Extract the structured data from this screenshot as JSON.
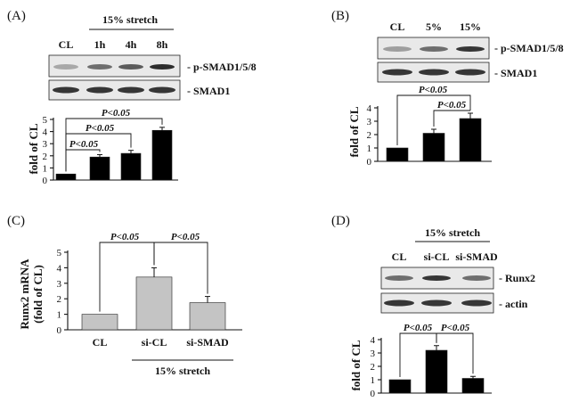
{
  "chart_data": [
    {
      "panel": "(A)",
      "type": "bar",
      "header": "15% stretch",
      "lanes": [
        "CL",
        "1h",
        "4h",
        "8h"
      ],
      "blots": [
        {
          "label": "- p-SMAD1/5/8",
          "intensity": [
            0.25,
            0.55,
            0.65,
            0.9
          ]
        },
        {
          "label": "- SMAD1",
          "intensity": [
            0.85,
            0.85,
            0.85,
            0.85
          ]
        }
      ],
      "categories": [
        "CL",
        "1h",
        "4h",
        "8h"
      ],
      "values": [
        0.5,
        1.9,
        2.2,
        4.1
      ],
      "errors": [
        0,
        0.2,
        0.25,
        0.25
      ],
      "bar_color": "#000000",
      "ylabel": "fold of CL",
      "ylim": [
        0,
        5
      ],
      "yticks": [
        "0",
        "1",
        "2",
        "3",
        "4",
        "5"
      ],
      "annotations": [
        "P<0.05",
        "P<0.05",
        "P<0.05"
      ]
    },
    {
      "panel": "(B)",
      "type": "bar",
      "header": "",
      "lanes": [
        "CL",
        "5%",
        "15%"
      ],
      "blots": [
        {
          "label": "- p-SMAD1/5/8",
          "intensity": [
            0.3,
            0.55,
            0.85
          ]
        },
        {
          "label": "- SMAD1",
          "intensity": [
            0.85,
            0.85,
            0.85
          ]
        }
      ],
      "categories": [
        "CL",
        "5%",
        "15%"
      ],
      "values": [
        1.0,
        2.1,
        3.2
      ],
      "errors": [
        0,
        0.3,
        0.4
      ],
      "bar_color": "#000000",
      "ylabel": "fold of CL",
      "ylim": [
        0,
        4
      ],
      "yticks": [
        "0",
        "1",
        "2",
        "3",
        "4"
      ],
      "annotations": [
        "P<0.05",
        "P<0.05"
      ]
    },
    {
      "panel": "(C)",
      "type": "bar",
      "header": "15% stretch",
      "categories": [
        "CL",
        "si-CL",
        "si-SMAD"
      ],
      "values": [
        1.0,
        3.4,
        1.75
      ],
      "errors": [
        0,
        0.6,
        0.4
      ],
      "bar_color": "#c4c4c4",
      "ylabel_line1": "Runx2 mRNA",
      "ylabel_line2": "(fold of CL)",
      "ylim": [
        0,
        5
      ],
      "yticks": [
        "0",
        "1",
        "2",
        "3",
        "4",
        "5"
      ],
      "annotations": [
        "P<0.05",
        "P<0.05"
      ]
    },
    {
      "panel": "(D)",
      "type": "bar",
      "header": "15% stretch",
      "lanes": [
        "CL",
        "si-CL",
        "si-SMAD"
      ],
      "blots": [
        {
          "label": "- Runx2",
          "intensity": [
            0.55,
            0.85,
            0.55
          ]
        },
        {
          "label": "- actin",
          "intensity": [
            0.85,
            0.85,
            0.85
          ]
        }
      ],
      "categories": [
        "CL",
        "si-CL",
        "si-SMAD"
      ],
      "values": [
        1.0,
        3.2,
        1.1
      ],
      "errors": [
        0,
        0.35,
        0.15
      ],
      "bar_color": "#000000",
      "ylabel": "fold of CL",
      "ylim": [
        0,
        4
      ],
      "yticks": [
        "0",
        "1",
        "2",
        "3",
        "4"
      ],
      "annotations": [
        "P<0.05",
        "P<0.05"
      ]
    }
  ]
}
